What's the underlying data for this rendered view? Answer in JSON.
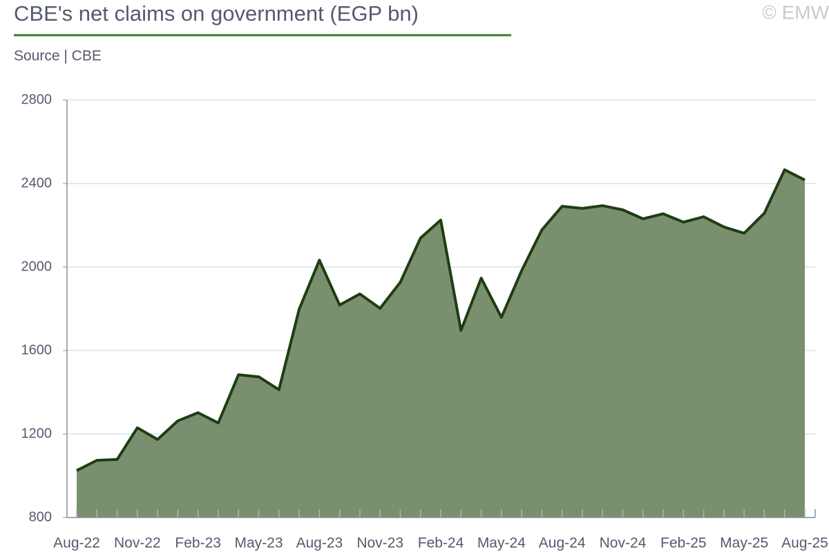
{
  "chart_data": {
    "type": "area",
    "title": "CBE's net claims on government (EGP bn)",
    "subtitle": "Source | CBE",
    "watermark": "© EMW",
    "categories": [
      "Aug-22",
      null,
      null,
      "Nov-22",
      null,
      null,
      "Feb-23",
      null,
      null,
      "May-23",
      null,
      null,
      "Aug-23",
      null,
      null,
      "Nov-23",
      null,
      null,
      "Feb-24",
      null,
      null,
      "May-24",
      null,
      null,
      "Aug-24",
      null,
      null,
      "Nov-24",
      null,
      null,
      "Feb-25",
      null,
      null,
      "May-25",
      null,
      null,
      "Aug-25"
    ],
    "series": [
      {
        "name": "Net claims on government",
        "color": "#1e3d14",
        "fill": "#7a8f6e",
        "values": [
          1025,
          1074,
          1078,
          1230,
          1174,
          1263,
          1302,
          1253,
          1484,
          1474,
          1412,
          1798,
          2033,
          1818,
          1871,
          1802,
          1927,
          2139,
          2225,
          1696,
          1947,
          1759,
          1983,
          2178,
          2291,
          2281,
          2294,
          2274,
          2231,
          2255,
          2215,
          2241,
          2192,
          2162,
          2258,
          2466,
          2417
        ]
      }
    ],
    "ylim": [
      800,
      2800
    ],
    "yticks": [
      800,
      1200,
      1600,
      2000,
      2400,
      2800
    ],
    "grid": true
  }
}
